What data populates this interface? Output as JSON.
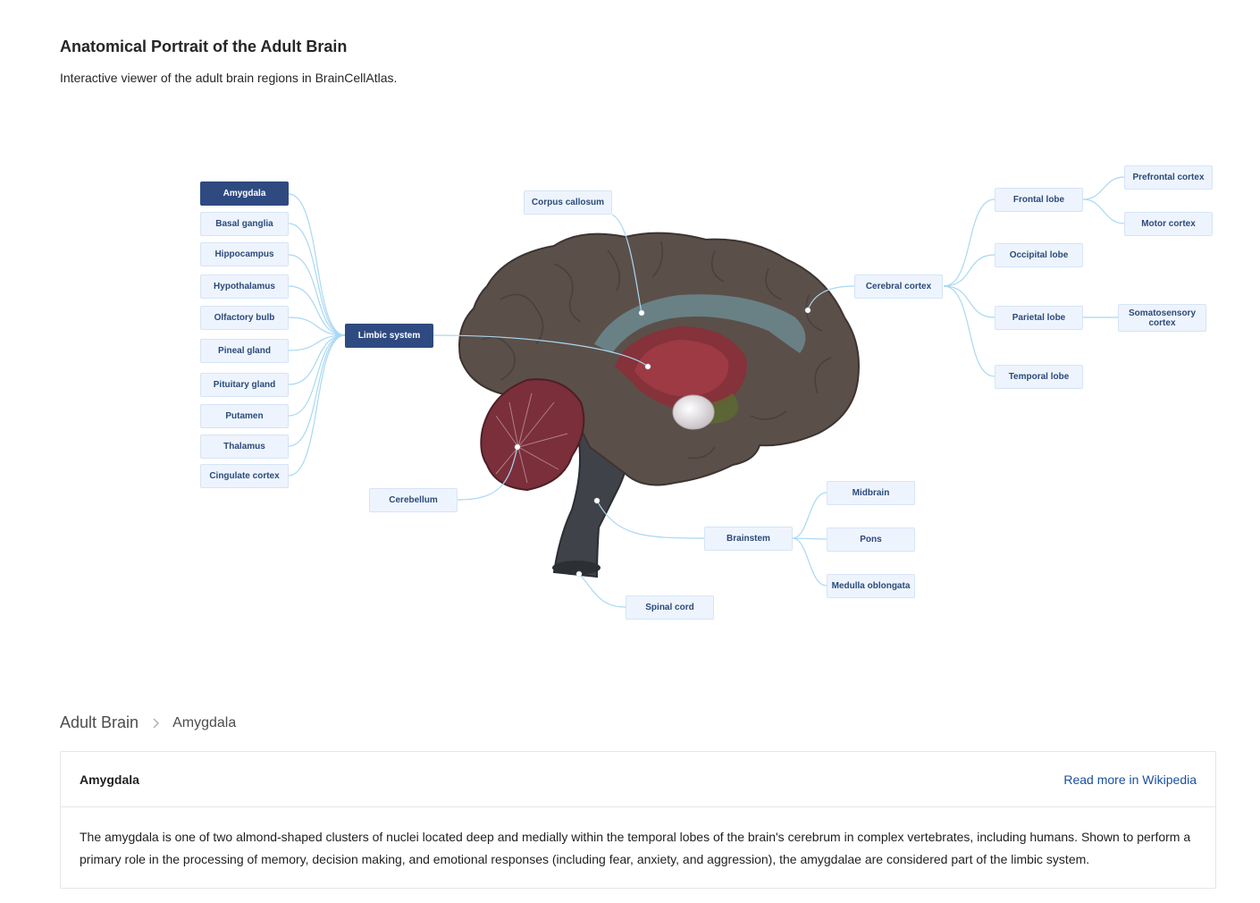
{
  "header": {
    "title": "Anatomical Portrait of the Adult Brain",
    "subtitle": "Interactive viewer of the adult brain regions in BrainCellAtlas."
  },
  "viewer": {
    "selected": "Amygdala",
    "limbic_children": [
      "Amygdala",
      "Basal ganglia",
      "Hippocampus",
      "Hypothalamus",
      "Olfactory bulb",
      "Pineal gland",
      "Pituitary gland",
      "Putamen",
      "Thalamus",
      "Cingulate cortex"
    ],
    "limbic": "Limbic system",
    "corpus_callosum": "Corpus callosum",
    "cerebral_cortex": "Cerebral cortex",
    "frontal_lobe": "Frontal lobe",
    "prefrontal_cortex": "Prefrontal cortex",
    "motor_cortex": "Motor cortex",
    "occipital_lobe": "Occipital lobe",
    "parietal_lobe": "Parietal lobe",
    "somatosensory_cortex": "Somatosensory cortex",
    "temporal_lobe": "Temporal lobe",
    "cerebellum": "Cerebellum",
    "brainstem": "Brainstem",
    "midbrain": "Midbrain",
    "pons": "Pons",
    "medulla": "Medulla oblongata",
    "spinal_cord": "Spinal cord"
  },
  "breadcrumb": {
    "root": "Adult Brain",
    "current": "Amygdala"
  },
  "detail": {
    "title": "Amygdala",
    "link": "Read more in Wikipedia",
    "description": "The amygdala is one of two almond-shaped clusters of nuclei located deep and medially within the temporal lobes of the brain's cerebrum in complex vertebrates, including humans. Shown to perform a primary role in the processing of memory, decision making, and emotional responses (including fear, anxiety, and aggression), the amygdalae are considered part of the limbic system."
  },
  "colors": {
    "node_bg": "#eef4fd",
    "node_text": "#2b4a7a",
    "node_selected": "#2e4a80",
    "link_line": "#a9d8f2",
    "brain_tissue": "#5b4f4a",
    "brainstem": "#3f4349"
  }
}
